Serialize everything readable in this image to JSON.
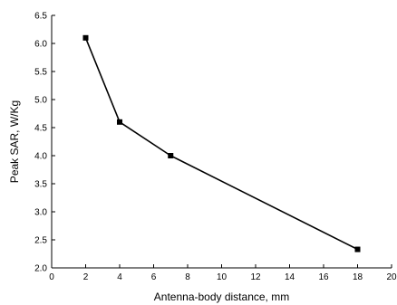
{
  "chart_data": {
    "type": "line",
    "title": "",
    "xlabel": "Antenna-body distance, mm",
    "ylabel": "Peak SAR, W/Kg",
    "xlim": [
      0,
      20
    ],
    "ylim": [
      2.0,
      6.5
    ],
    "xticks": [
      0,
      2,
      4,
      6,
      8,
      10,
      12,
      14,
      16,
      18,
      20
    ],
    "yticks": [
      2.0,
      2.5,
      3.0,
      3.5,
      4.0,
      4.5,
      5.0,
      5.5,
      6.0,
      6.5
    ],
    "xtick_labels": [
      "0",
      "2",
      "4",
      "6",
      "8",
      "10",
      "12",
      "14",
      "16",
      "18",
      "20"
    ],
    "ytick_labels": [
      "2.0",
      "2.5",
      "3.0",
      "3.5",
      "4.0",
      "4.5",
      "5.0",
      "5.5",
      "6.0",
      "6.5"
    ],
    "grid": false,
    "series": [
      {
        "x": [
          2,
          4,
          7,
          18
        ],
        "y": [
          6.1,
          4.6,
          4.0,
          2.33
        ],
        "color": "#000000",
        "marker": "square"
      }
    ]
  }
}
